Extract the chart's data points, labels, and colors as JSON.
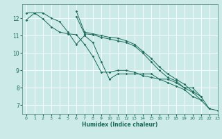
{
  "xlabel": "Humidex (Indice chaleur)",
  "bg_color": "#cceae8",
  "line_color": "#1a6b5a",
  "grid_color": "#ffffff",
  "xlim": [
    -0.5,
    23
  ],
  "ylim": [
    6.5,
    12.8
  ],
  "yticks": [
    7,
    8,
    9,
    10,
    11,
    12
  ],
  "xticks": [
    0,
    1,
    2,
    3,
    4,
    5,
    6,
    7,
    8,
    9,
    10,
    11,
    12,
    13,
    14,
    15,
    16,
    17,
    18,
    19,
    20,
    21,
    22,
    23
  ],
  "series": [
    [
      11.9,
      12.3,
      12.3,
      12.0,
      11.8,
      11.2,
      10.5,
      11.0,
      10.6,
      9.5,
      8.5,
      8.8,
      8.8,
      8.8,
      8.8,
      8.8,
      8.5,
      8.5,
      8.3,
      8.0,
      8.0,
      7.5,
      6.8,
      6.7
    ],
    [
      12.3,
      12.3,
      11.95,
      11.5,
      11.2,
      11.1,
      11.05,
      10.5,
      9.8,
      8.9,
      8.9,
      9.0,
      9.0,
      8.9,
      8.7,
      8.6,
      8.5,
      8.3,
      8.1,
      7.9,
      7.5,
      7.3,
      6.8,
      null
    ],
    [
      null,
      null,
      null,
      null,
      null,
      null,
      12.4,
      11.2,
      11.1,
      11.0,
      10.9,
      10.85,
      10.7,
      10.5,
      10.1,
      9.7,
      9.2,
      8.8,
      8.5,
      8.2,
      7.8,
      7.5,
      null,
      null
    ],
    [
      null,
      null,
      null,
      null,
      null,
      null,
      12.1,
      11.1,
      11.05,
      10.9,
      10.8,
      10.7,
      10.6,
      10.4,
      10.0,
      9.5,
      9.0,
      8.6,
      8.4,
      8.0,
      7.75,
      7.3,
      null,
      null
    ]
  ]
}
